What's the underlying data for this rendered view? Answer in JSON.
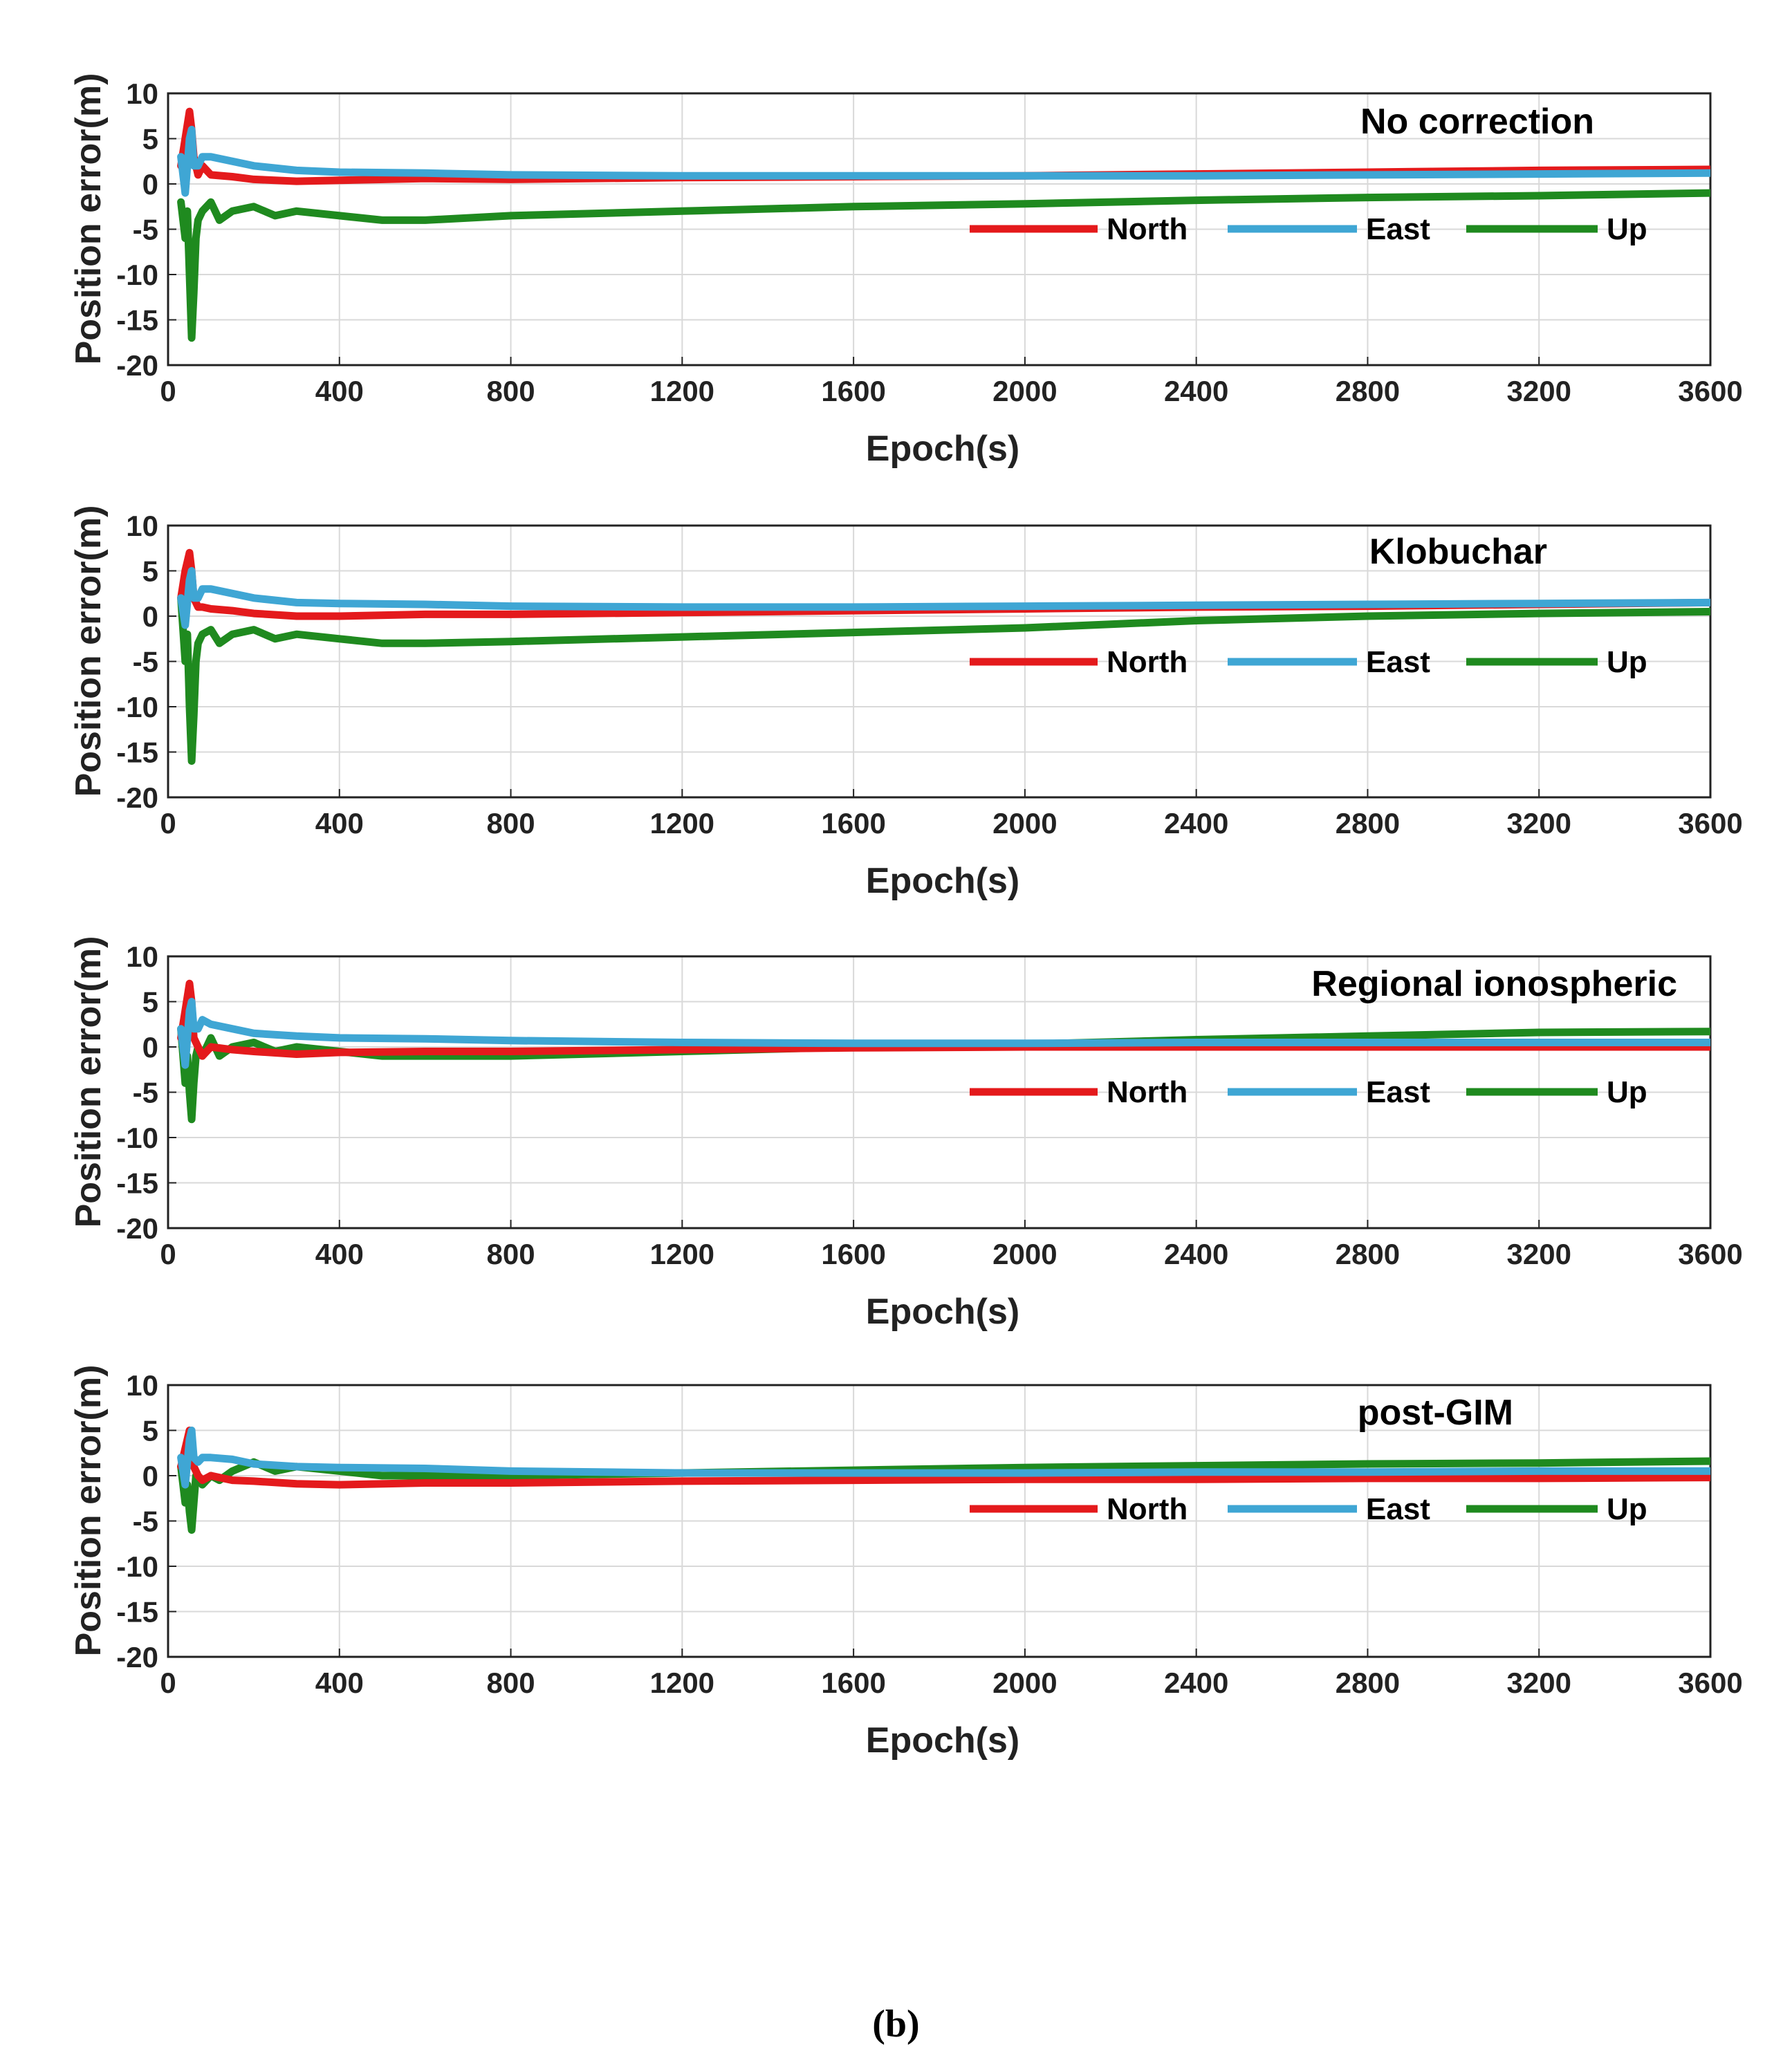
{
  "caption": "(b)",
  "colors": {
    "North": "#e41a1c",
    "East": "#3fa6d4",
    "Up": "#1f8a1f",
    "grid": "#d9d9d9",
    "axis": "#222222"
  },
  "chart_data": [
    {
      "type": "line",
      "title": "No correction",
      "xlabel": "Epoch(s)",
      "ylabel": "Position error(m)",
      "xlim": [
        0,
        3600
      ],
      "ylim": [
        -20,
        10
      ],
      "xticks": [
        "0",
        "400",
        "800",
        "1200",
        "1600",
        "2000",
        "2400",
        "2800",
        "3200",
        "3600"
      ],
      "yticks": [
        "10",
        "5",
        "0",
        "-5",
        "-10",
        "-15",
        "-20"
      ],
      "legend": [
        "North",
        "East",
        "Up"
      ],
      "series": [
        {
          "name": "North",
          "x": [
            30,
            40,
            50,
            55,
            60,
            70,
            80,
            100,
            150,
            200,
            300,
            400,
            600,
            800,
            1200,
            1600,
            2000,
            2400,
            2800,
            3200,
            3600
          ],
          "y": [
            2,
            5,
            8,
            6,
            3,
            1,
            2,
            1,
            0.8,
            0.5,
            0.3,
            0.4,
            0.6,
            0.5,
            0.7,
            0.8,
            0.9,
            1.1,
            1.3,
            1.5,
            1.6
          ]
        },
        {
          "name": "East",
          "x": [
            30,
            40,
            50,
            55,
            60,
            70,
            80,
            100,
            150,
            200,
            300,
            400,
            600,
            800,
            1200,
            1600,
            2000,
            2400,
            2800,
            3200,
            3600
          ],
          "y": [
            3,
            -1,
            5,
            6,
            2,
            2,
            3,
            3,
            2.5,
            2,
            1.5,
            1.3,
            1.2,
            1,
            0.9,
            0.9,
            0.9,
            0.9,
            1,
            1.1,
            1.2
          ]
        },
        {
          "name": "Up",
          "x": [
            30,
            40,
            45,
            50,
            55,
            60,
            65,
            70,
            80,
            100,
            120,
            150,
            200,
            250,
            300,
            400,
            500,
            600,
            800,
            1200,
            1600,
            2000,
            2400,
            2800,
            3200,
            3600
          ],
          "y": [
            -2,
            -6,
            -3,
            -10,
            -17,
            -12,
            -6,
            -4,
            -3,
            -2,
            -4,
            -3,
            -2.5,
            -3.5,
            -3,
            -3.5,
            -4,
            -4,
            -3.5,
            -3,
            -2.5,
            -2.2,
            -1.8,
            -1.5,
            -1.3,
            -1
          ]
        }
      ]
    },
    {
      "type": "line",
      "title": "Klobuchar",
      "xlabel": "Epoch(s)",
      "ylabel": "Position error(m)",
      "xlim": [
        0,
        3600
      ],
      "ylim": [
        -20,
        10
      ],
      "xticks": [
        "0",
        "400",
        "800",
        "1200",
        "1600",
        "2000",
        "2400",
        "2800",
        "3200",
        "3600"
      ],
      "yticks": [
        "10",
        "5",
        "0",
        "-5",
        "-10",
        "-15",
        "-20"
      ],
      "legend": [
        "North",
        "East",
        "Up"
      ],
      "series": [
        {
          "name": "North",
          "x": [
            30,
            40,
            50,
            55,
            60,
            70,
            80,
            100,
            150,
            200,
            300,
            400,
            600,
            800,
            1200,
            1600,
            2000,
            2400,
            2800,
            3200,
            3600
          ],
          "y": [
            2,
            5,
            7,
            5,
            2,
            1,
            1,
            0.8,
            0.6,
            0.3,
            0,
            0,
            0.2,
            0.2,
            0.4,
            0.6,
            0.8,
            1,
            1.1,
            1.3,
            1.5
          ]
        },
        {
          "name": "East",
          "x": [
            30,
            40,
            50,
            55,
            60,
            70,
            80,
            100,
            150,
            200,
            300,
            400,
            600,
            800,
            1200,
            1600,
            2000,
            2400,
            2800,
            3200,
            3600
          ],
          "y": [
            2,
            -1,
            4,
            5,
            2,
            2,
            3,
            3,
            2.5,
            2,
            1.5,
            1.4,
            1.3,
            1.1,
            1,
            1,
            1.1,
            1.2,
            1.3,
            1.4,
            1.5
          ]
        },
        {
          "name": "Up",
          "x": [
            30,
            40,
            45,
            50,
            55,
            60,
            65,
            70,
            80,
            100,
            120,
            150,
            200,
            250,
            300,
            400,
            500,
            600,
            800,
            1200,
            1600,
            2000,
            2400,
            2800,
            3200,
            3600
          ],
          "y": [
            2,
            -5,
            -2,
            -10,
            -16,
            -11,
            -5,
            -3,
            -2,
            -1.5,
            -3,
            -2,
            -1.5,
            -2.5,
            -2,
            -2.5,
            -3,
            -3,
            -2.8,
            -2.3,
            -1.8,
            -1.3,
            -0.5,
            0,
            0.3,
            0.5
          ]
        }
      ]
    },
    {
      "type": "line",
      "title": "Regional ionospheric",
      "xlabel": "Epoch(s)",
      "ylabel": "Position error(m)",
      "xlim": [
        0,
        3600
      ],
      "ylim": [
        -20,
        10
      ],
      "xticks": [
        "0",
        "400",
        "800",
        "1200",
        "1600",
        "2000",
        "2400",
        "2800",
        "3200",
        "3600"
      ],
      "yticks": [
        "10",
        "5",
        "0",
        "-5",
        "-10",
        "-15",
        "-20"
      ],
      "legend": [
        "North",
        "East",
        "Up"
      ],
      "series": [
        {
          "name": "North",
          "x": [
            30,
            40,
            50,
            55,
            60,
            70,
            80,
            100,
            150,
            200,
            300,
            400,
            600,
            800,
            1200,
            1600,
            2000,
            2400,
            2800,
            3200,
            3600
          ],
          "y": [
            1,
            4,
            7,
            5,
            1,
            0,
            -1,
            0,
            -0.3,
            -0.5,
            -0.8,
            -0.6,
            -0.5,
            -0.5,
            -0.3,
            -0.1,
            0,
            0,
            0,
            0,
            0
          ]
        },
        {
          "name": "East",
          "x": [
            30,
            40,
            50,
            55,
            60,
            70,
            80,
            100,
            150,
            200,
            300,
            400,
            600,
            800,
            1200,
            1600,
            2000,
            2400,
            2800,
            3200,
            3600
          ],
          "y": [
            2,
            -2,
            4,
            5,
            2,
            2,
            3,
            2.5,
            2,
            1.5,
            1.2,
            1,
            0.9,
            0.7,
            0.5,
            0.4,
            0.4,
            0.5,
            0.5,
            0.5,
            0.5
          ]
        },
        {
          "name": "Up",
          "x": [
            30,
            40,
            45,
            50,
            55,
            60,
            65,
            70,
            80,
            100,
            120,
            150,
            200,
            250,
            300,
            400,
            500,
            600,
            800,
            1200,
            1600,
            2000,
            2400,
            2800,
            3200,
            3600
          ],
          "y": [
            2,
            -4,
            -1,
            -5,
            -8,
            -4,
            -1,
            0,
            -1,
            1,
            -1,
            0,
            0.5,
            -0.5,
            0,
            -0.5,
            -1,
            -1,
            -1,
            -0.5,
            0,
            0.3,
            0.8,
            1.2,
            1.6,
            1.7
          ]
        }
      ]
    },
    {
      "type": "line",
      "title": "post-GIM",
      "xlabel": "Epoch(s)",
      "ylabel": "Position error(m)",
      "xlim": [
        0,
        3600
      ],
      "ylim": [
        -20,
        10
      ],
      "xticks": [
        "0",
        "400",
        "800",
        "1200",
        "1600",
        "2000",
        "2400",
        "2800",
        "3200",
        "3600"
      ],
      "yticks": [
        "10",
        "5",
        "0",
        "-5",
        "-10",
        "-15",
        "-20"
      ],
      "legend": [
        "North",
        "East",
        "Up"
      ],
      "series": [
        {
          "name": "North",
          "x": [
            30,
            40,
            50,
            55,
            60,
            70,
            80,
            100,
            150,
            200,
            300,
            400,
            600,
            800,
            1200,
            1600,
            2000,
            2400,
            2800,
            3200,
            3600
          ],
          "y": [
            1,
            3,
            5,
            4,
            1,
            0,
            -0.5,
            0,
            -0.5,
            -0.6,
            -0.9,
            -1,
            -0.8,
            -0.8,
            -0.6,
            -0.5,
            -0.4,
            -0.4,
            -0.3,
            -0.3,
            -0.2
          ]
        },
        {
          "name": "East",
          "x": [
            30,
            40,
            50,
            55,
            60,
            70,
            80,
            100,
            150,
            200,
            300,
            400,
            600,
            800,
            1200,
            1600,
            2000,
            2400,
            2800,
            3200,
            3600
          ],
          "y": [
            2,
            -1,
            4,
            5,
            2,
            1.5,
            2,
            2,
            1.8,
            1.3,
            1,
            0.9,
            0.8,
            0.5,
            0.3,
            0.3,
            0.3,
            0.4,
            0.4,
            0.5,
            0.5
          ]
        },
        {
          "name": "Up",
          "x": [
            30,
            40,
            45,
            50,
            55,
            60,
            65,
            70,
            80,
            100,
            120,
            150,
            200,
            250,
            300,
            400,
            500,
            600,
            800,
            1200,
            1600,
            2000,
            2400,
            2800,
            3200,
            3600
          ],
          "y": [
            1,
            -3,
            -1,
            -4,
            -6,
            -3,
            0,
            0,
            -1,
            0,
            -0.5,
            0.5,
            1.5,
            0.5,
            1,
            0.5,
            0,
            0,
            0,
            0.3,
            0.6,
            0.9,
            1.1,
            1.3,
            1.4,
            1.6
          ]
        }
      ]
    }
  ]
}
